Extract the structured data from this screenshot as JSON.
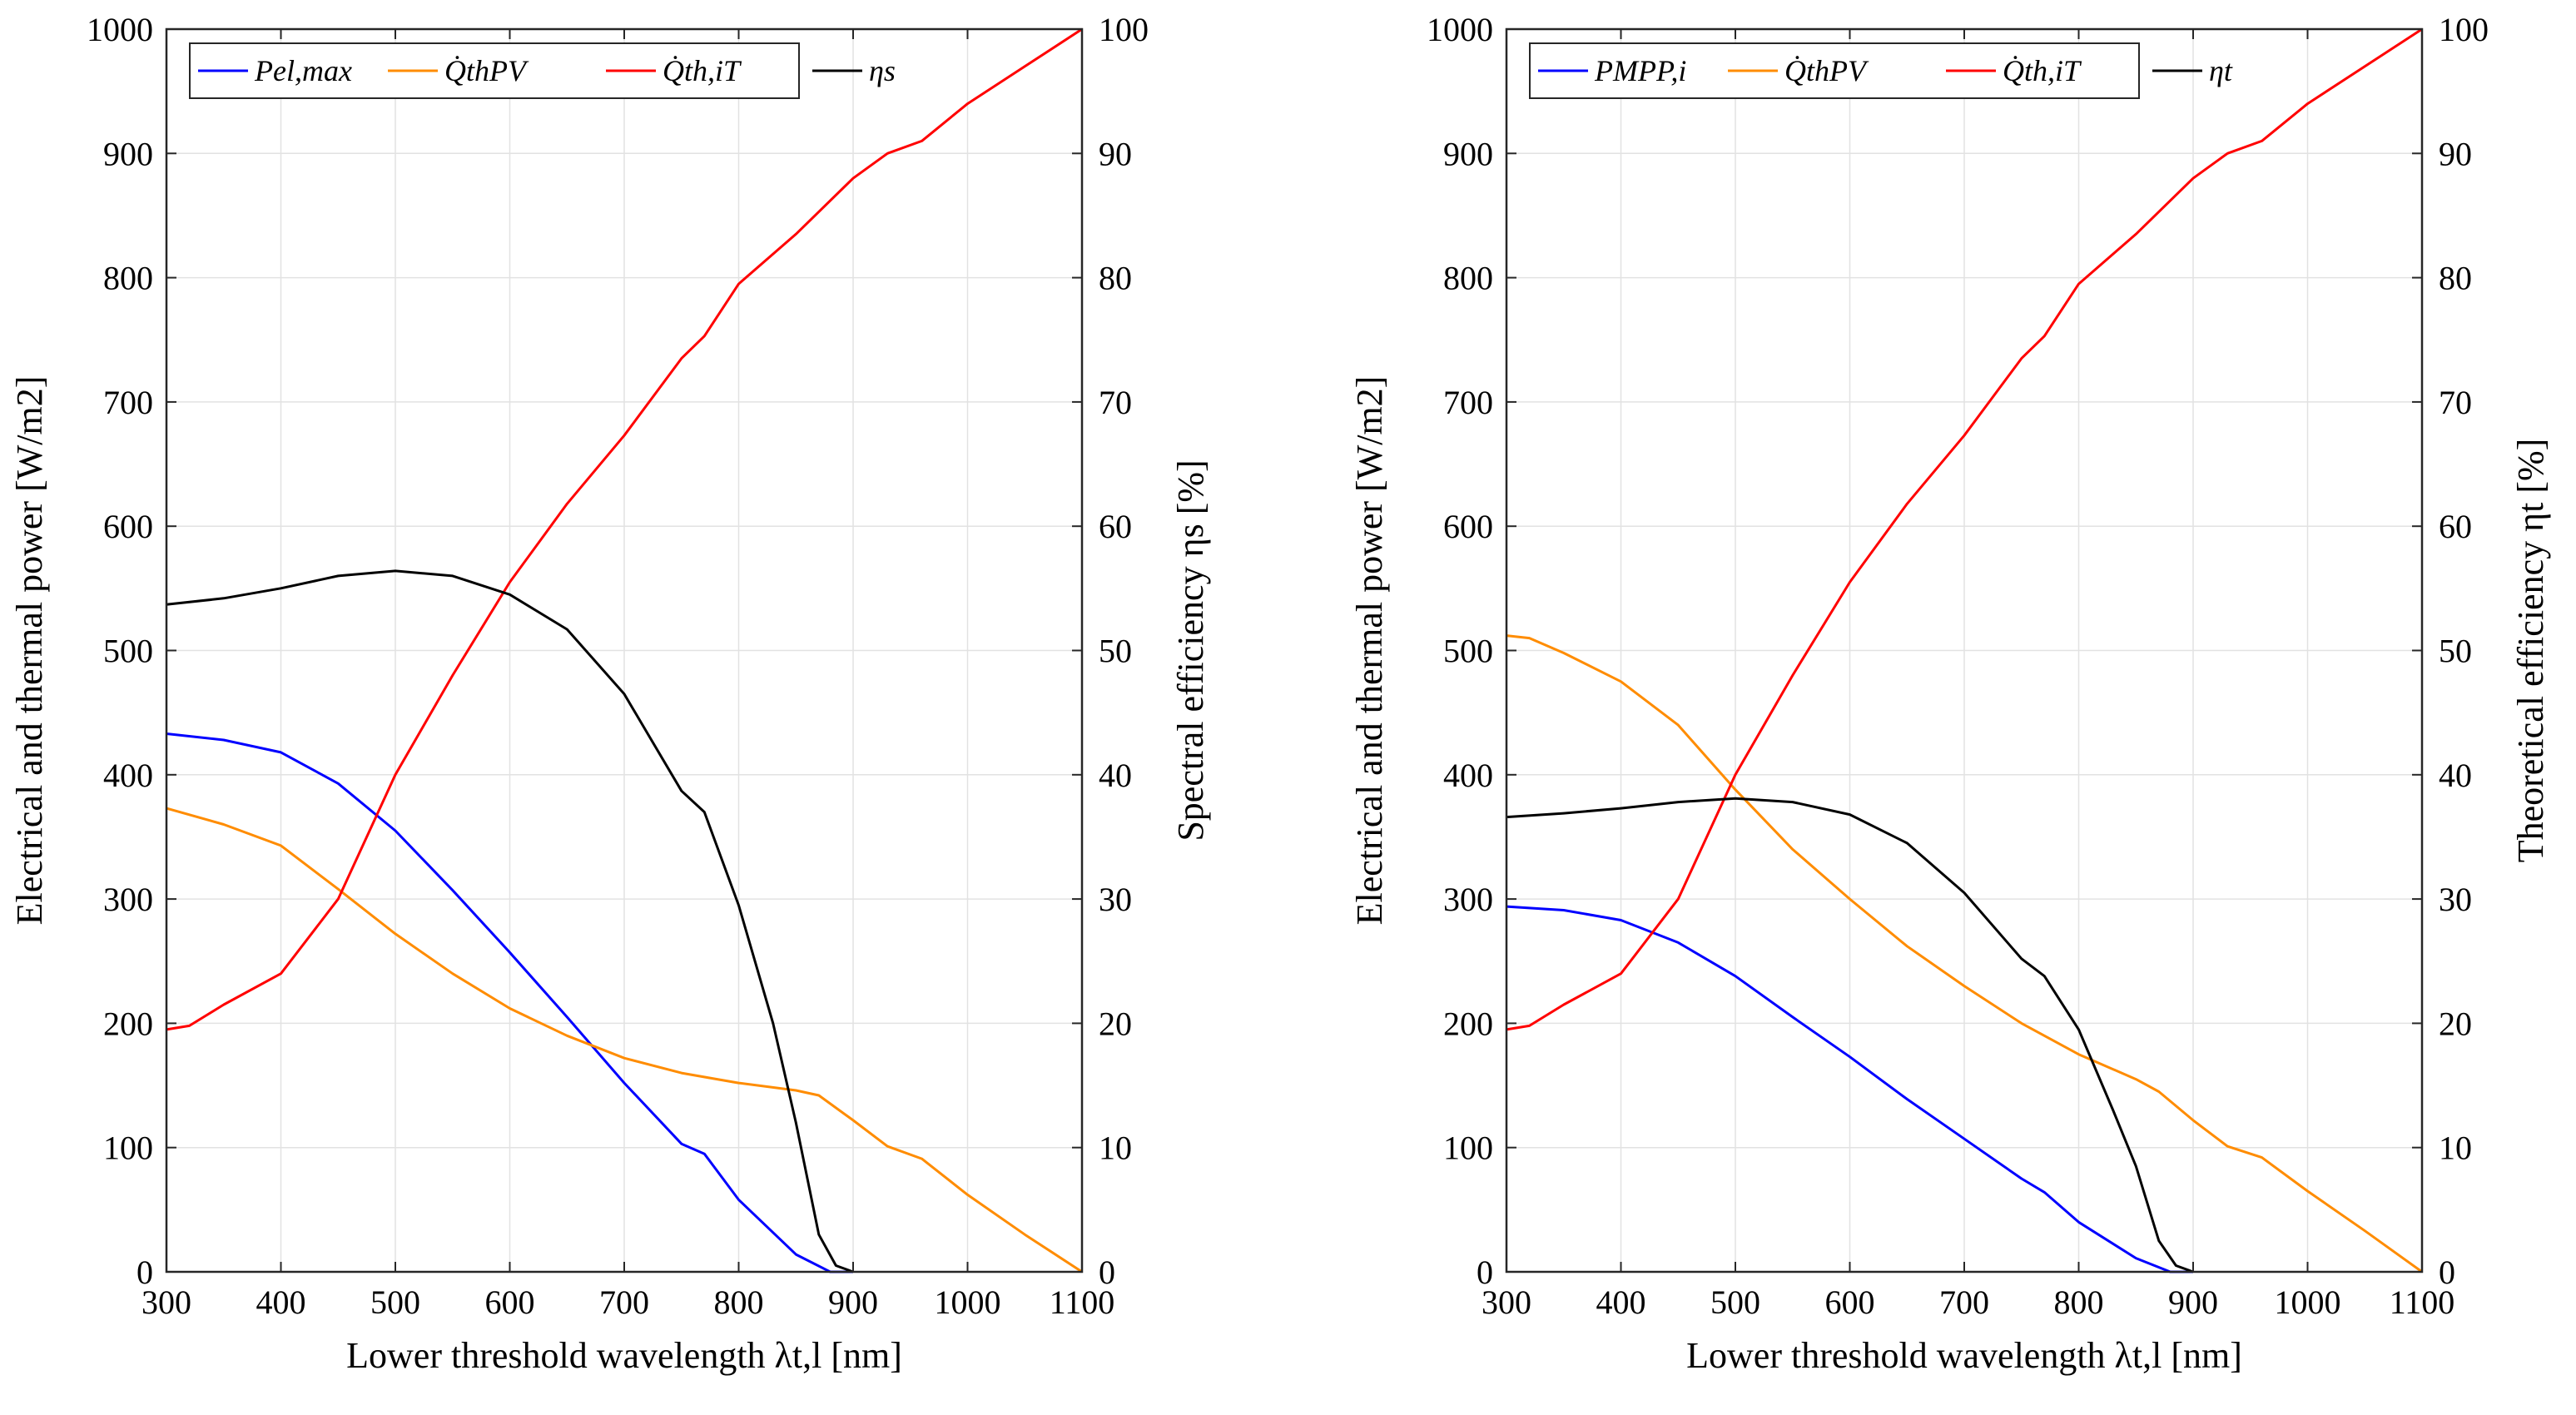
{
  "chart_data": [
    {
      "type": "line",
      "xlabel": "Lower threshold wavelength λt,l [nm]",
      "ylabel_left": "Electrical and thermal power [W/m2]",
      "ylabel_right": "Spectral efficiency ηs [%]",
      "xlim": [
        300,
        1100
      ],
      "ylim_left": [
        0,
        1000
      ],
      "ylim_right": [
        0,
        100
      ],
      "x_ticks": [
        "300",
        "400",
        "500",
        "600",
        "700",
        "800",
        "900",
        "1000",
        "1100"
      ],
      "y_ticks_left": [
        "0",
        "100",
        "200",
        "300",
        "400",
        "500",
        "600",
        "700",
        "800",
        "900",
        "1000"
      ],
      "y_ticks_right": [
        "0",
        "10",
        "20",
        "30",
        "40",
        "50",
        "60",
        "70",
        "80",
        "90",
        "100"
      ],
      "legend": [
        "Pel,max",
        "Q̇thPV",
        "Q̇th,iT",
        "ηs"
      ],
      "series": [
        {
          "name": "Pel,max",
          "axis": "left",
          "color": "#0000ff",
          "x": [
            300,
            350,
            400,
            450,
            500,
            550,
            600,
            650,
            700,
            750,
            770,
            800,
            850,
            880,
            900
          ],
          "y": [
            433,
            428,
            418,
            393,
            355,
            307,
            257,
            205,
            152,
            103,
            95,
            58,
            14,
            0,
            0
          ]
        },
        {
          "name": "Q̇thPV",
          "axis": "left",
          "color": "#ff8c00",
          "x": [
            300,
            350,
            400,
            450,
            500,
            550,
            600,
            650,
            700,
            750,
            800,
            850,
            870,
            900,
            930,
            960,
            1000,
            1050,
            1100
          ],
          "y": [
            373,
            360,
            343,
            308,
            272,
            240,
            212,
            190,
            172,
            160,
            152,
            146,
            142,
            122,
            101,
            91,
            62,
            30,
            0
          ]
        },
        {
          "name": "Q̇th,iT",
          "axis": "left",
          "color": "#ff0000",
          "x": [
            300,
            320,
            350,
            400,
            450,
            500,
            550,
            600,
            650,
            700,
            750,
            770,
            800,
            850,
            900,
            930,
            960,
            1000,
            1050,
            1100
          ],
          "y": [
            195,
            198,
            215,
            240,
            300,
            400,
            480,
            555,
            618,
            673,
            735,
            753,
            795,
            835,
            880,
            900,
            910,
            940,
            970,
            1000
          ]
        },
        {
          "name": "ηs",
          "axis": "right",
          "color": "#000000",
          "x": [
            300,
            350,
            400,
            450,
            500,
            550,
            600,
            650,
            700,
            750,
            770,
            800,
            830,
            850,
            870,
            885,
            900
          ],
          "y": [
            53.7,
            54.2,
            55,
            56,
            56.4,
            56,
            54.5,
            51.7,
            46.5,
            38.7,
            37,
            29.5,
            20,
            12,
            3,
            0.5,
            0
          ]
        }
      ]
    },
    {
      "type": "line",
      "xlabel": "Lower threshold wavelength λt,l [nm]",
      "ylabel_left": "Electrical and thermal power [W/m2]",
      "ylabel_right": "Theoretical efficiency ηt [%]",
      "xlim": [
        300,
        1100
      ],
      "ylim_left": [
        0,
        1000
      ],
      "ylim_right": [
        0,
        100
      ],
      "x_ticks": [
        "300",
        "400",
        "500",
        "600",
        "700",
        "800",
        "900",
        "1000",
        "1100"
      ],
      "y_ticks_left": [
        "0",
        "100",
        "200",
        "300",
        "400",
        "500",
        "600",
        "700",
        "800",
        "900",
        "1000"
      ],
      "y_ticks_right": [
        "0",
        "10",
        "20",
        "30",
        "40",
        "50",
        "60",
        "70",
        "80",
        "90",
        "100"
      ],
      "legend": [
        "PMPP,i",
        "Q̇thPV",
        "Q̇th,iT",
        "ηt"
      ],
      "series": [
        {
          "name": "PMPP,i",
          "axis": "left",
          "color": "#0000ff",
          "x": [
            300,
            350,
            400,
            450,
            500,
            550,
            600,
            650,
            700,
            750,
            770,
            800,
            850,
            880,
            900
          ],
          "y": [
            294,
            291,
            283,
            265,
            238,
            205,
            173,
            139,
            107,
            75,
            64,
            40,
            11,
            0,
            0
          ]
        },
        {
          "name": "Q̇thPV",
          "axis": "left",
          "color": "#ff8c00",
          "x": [
            300,
            320,
            350,
            400,
            450,
            500,
            550,
            600,
            650,
            700,
            750,
            800,
            850,
            870,
            900,
            930,
            960,
            1000,
            1050,
            1100
          ],
          "y": [
            512,
            510,
            498,
            475,
            440,
            388,
            340,
            300,
            262,
            230,
            200,
            175,
            155,
            145,
            122,
            101,
            92,
            65,
            33,
            0
          ]
        },
        {
          "name": "Q̇th,iT",
          "axis": "left",
          "color": "#ff0000",
          "x": [
            300,
            320,
            350,
            400,
            450,
            500,
            550,
            600,
            650,
            700,
            750,
            770,
            800,
            850,
            900,
            930,
            960,
            1000,
            1050,
            1100
          ],
          "y": [
            195,
            198,
            215,
            240,
            300,
            400,
            480,
            555,
            618,
            673,
            735,
            753,
            795,
            835,
            880,
            900,
            910,
            940,
            970,
            1000
          ]
        },
        {
          "name": "ηt",
          "axis": "right",
          "color": "#000000",
          "x": [
            300,
            350,
            400,
            450,
            500,
            550,
            600,
            650,
            700,
            750,
            770,
            800,
            830,
            850,
            870,
            885,
            900
          ],
          "y": [
            36.6,
            36.9,
            37.3,
            37.8,
            38.1,
            37.8,
            36.8,
            34.5,
            30.5,
            25.2,
            23.8,
            19.5,
            13,
            8.5,
            2.5,
            0.5,
            0
          ]
        }
      ]
    }
  ]
}
